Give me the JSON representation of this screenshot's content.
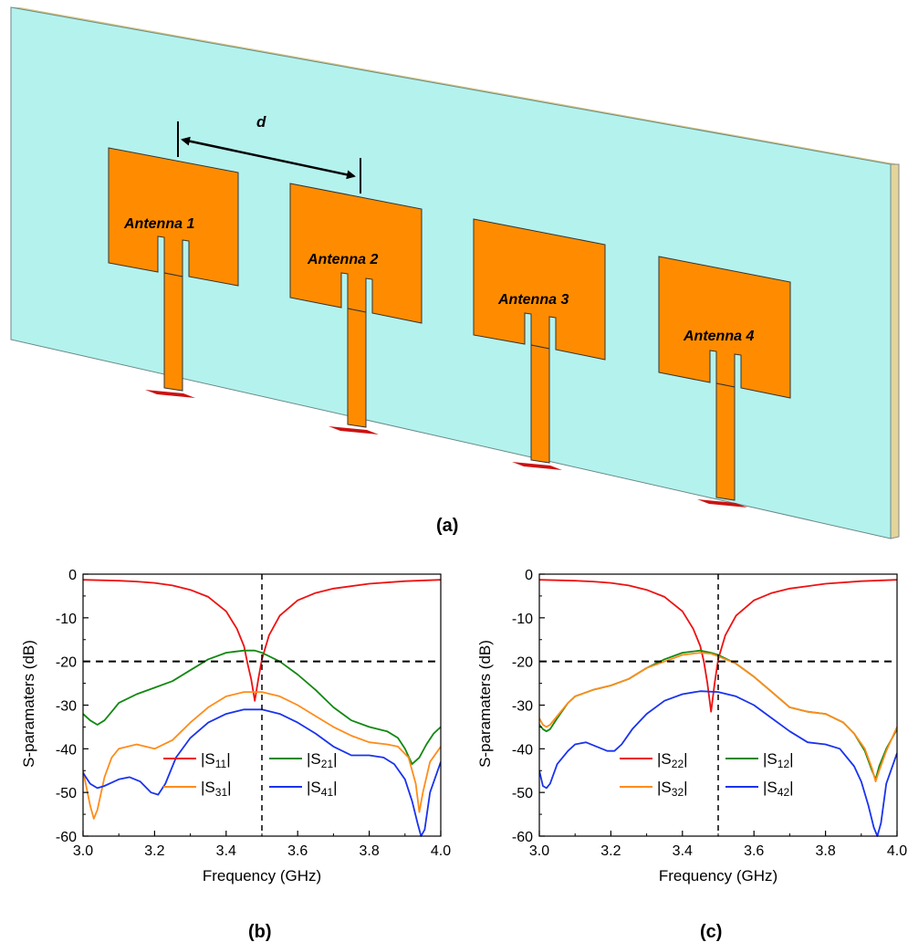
{
  "figure": {
    "panel_a_label": "(a)",
    "panel_b_label": "(b)",
    "panel_c_label": "(c)"
  },
  "illustration": {
    "spacing_label": "d",
    "antennas": [
      "Antenna 1",
      "Antenna 2",
      "Antenna 3",
      "Antenna 4"
    ],
    "colors": {
      "substrate": "#b4f2ee",
      "patch": "#ff8c00",
      "port": "#cc1111",
      "edge": "#e3d59a"
    }
  },
  "chart_data": [
    {
      "type": "line",
      "title": "",
      "xlabel": "Frequency (GHz)",
      "ylabel": "S-paramaters (dB)",
      "xlim": [
        3.0,
        4.0
      ],
      "ylim": [
        -60,
        0
      ],
      "xticks": [
        "3.0",
        "3.2",
        "3.4",
        "3.6",
        "3.8",
        "4.0"
      ],
      "yticks": [
        "0",
        "-10",
        "-20",
        "-30",
        "-40",
        "-50",
        "-60"
      ],
      "reference_lines": {
        "y": -20,
        "x": 3.5
      },
      "legend_placement": "bottom-center",
      "series": [
        {
          "name": "|S11|",
          "label_main": "|S",
          "label_sub": "11",
          "label_end": "|",
          "color": "#ee1111",
          "x": [
            3.0,
            3.05,
            3.1,
            3.15,
            3.2,
            3.25,
            3.3,
            3.35,
            3.4,
            3.43,
            3.45,
            3.46,
            3.47,
            3.48,
            3.49,
            3.5,
            3.52,
            3.55,
            3.6,
            3.65,
            3.7,
            3.8,
            3.9,
            4.0
          ],
          "y": [
            -1.3,
            -1.4,
            -1.5,
            -1.7,
            -2.0,
            -2.6,
            -3.6,
            -5.2,
            -8.5,
            -12.5,
            -16.5,
            -20.5,
            -24.0,
            -29.0,
            -24.0,
            -19.5,
            -14.0,
            -9.5,
            -6.0,
            -4.3,
            -3.3,
            -2.2,
            -1.6,
            -1.3
          ]
        },
        {
          "name": "|S21|",
          "label_main": "|S",
          "label_sub": "21",
          "label_end": "|",
          "color": "#118811",
          "x": [
            3.0,
            3.02,
            3.04,
            3.06,
            3.08,
            3.1,
            3.15,
            3.2,
            3.25,
            3.3,
            3.35,
            3.4,
            3.45,
            3.48,
            3.5,
            3.55,
            3.6,
            3.65,
            3.7,
            3.75,
            3.8,
            3.85,
            3.88,
            3.9,
            3.92,
            3.94,
            3.96,
            3.98,
            4.0
          ],
          "y": [
            -32.0,
            -33.5,
            -34.5,
            -33.5,
            -31.5,
            -29.5,
            -27.5,
            -26.0,
            -24.5,
            -22.0,
            -19.5,
            -18.0,
            -17.5,
            -17.5,
            -18.0,
            -20.0,
            -23.0,
            -26.5,
            -30.5,
            -33.5,
            -35.0,
            -36.0,
            -37.5,
            -40.0,
            -43.5,
            -42.0,
            -39.0,
            -36.5,
            -35.0
          ]
        },
        {
          "name": "|S31|",
          "label_main": "|S",
          "label_sub": "31",
          "label_end": "|",
          "color": "#ff8c1a",
          "x": [
            3.0,
            3.01,
            3.02,
            3.03,
            3.04,
            3.06,
            3.08,
            3.1,
            3.15,
            3.2,
            3.25,
            3.3,
            3.35,
            3.4,
            3.45,
            3.5,
            3.55,
            3.6,
            3.65,
            3.7,
            3.75,
            3.8,
            3.85,
            3.88,
            3.91,
            3.93,
            3.94,
            3.95,
            3.97,
            4.0
          ],
          "y": [
            -45.0,
            -49.0,
            -53.0,
            -56.0,
            -54.0,
            -46.5,
            -42.0,
            -40.0,
            -39.0,
            -40.0,
            -38.0,
            -34.0,
            -30.5,
            -28.0,
            -27.0,
            -27.0,
            -28.0,
            -30.0,
            -32.5,
            -35.0,
            -37.0,
            -38.5,
            -39.0,
            -39.5,
            -42.0,
            -48.0,
            -54.5,
            -50.0,
            -43.0,
            -39.5
          ]
        },
        {
          "name": "|S41|",
          "label_main": "|S",
          "label_sub": "41",
          "label_end": "|",
          "color": "#1a33ee",
          "x": [
            3.0,
            3.02,
            3.04,
            3.06,
            3.1,
            3.13,
            3.16,
            3.19,
            3.21,
            3.23,
            3.26,
            3.3,
            3.35,
            3.4,
            3.45,
            3.5,
            3.55,
            3.6,
            3.65,
            3.7,
            3.75,
            3.8,
            3.84,
            3.87,
            3.9,
            3.92,
            3.935,
            3.945,
            3.955,
            3.97,
            4.0
          ],
          "y": [
            -45.5,
            -48.0,
            -49.0,
            -48.5,
            -47.0,
            -46.5,
            -47.5,
            -50.0,
            -50.5,
            -48.0,
            -42.0,
            -37.5,
            -34.0,
            -32.0,
            -31.0,
            -31.0,
            -32.0,
            -34.0,
            -36.5,
            -39.5,
            -41.5,
            -41.5,
            -42.0,
            -43.5,
            -47.0,
            -52.0,
            -57.0,
            -60.0,
            -58.5,
            -50.0,
            -43.0
          ]
        }
      ]
    },
    {
      "type": "line",
      "title": "",
      "xlabel": "Frequency (GHz)",
      "ylabel": "S-paramaters (dB)",
      "xlim": [
        3.0,
        4.0
      ],
      "ylim": [
        -60,
        0
      ],
      "xticks": [
        "3.0",
        "3.2",
        "3.4",
        "3.6",
        "3.8",
        "4.0"
      ],
      "yticks": [
        "0",
        "-10",
        "-20",
        "-30",
        "-40",
        "-50",
        "-60"
      ],
      "reference_lines": {
        "y": -20,
        "x": 3.5
      },
      "legend_placement": "bottom-center",
      "series": [
        {
          "name": "|S22|",
          "label_main": "|S",
          "label_sub": "22",
          "label_end": "|",
          "color": "#ee1111",
          "x": [
            3.0,
            3.05,
            3.1,
            3.15,
            3.2,
            3.25,
            3.3,
            3.35,
            3.4,
            3.43,
            3.45,
            3.46,
            3.47,
            3.48,
            3.49,
            3.5,
            3.52,
            3.55,
            3.6,
            3.65,
            3.7,
            3.8,
            3.9,
            4.0
          ],
          "y": [
            -1.3,
            -1.4,
            -1.5,
            -1.7,
            -2.0,
            -2.6,
            -3.6,
            -5.2,
            -8.5,
            -12.5,
            -16.5,
            -20.0,
            -25.0,
            -31.5,
            -25.0,
            -19.5,
            -14.0,
            -9.5,
            -6.0,
            -4.3,
            -3.3,
            -2.2,
            -1.6,
            -1.3
          ]
        },
        {
          "name": "|S12|",
          "label_main": "|S",
          "label_sub": "12",
          "label_end": "|",
          "color": "#118811",
          "x": [
            3.0,
            3.01,
            3.02,
            3.03,
            3.05,
            3.08,
            3.1,
            3.15,
            3.2,
            3.25,
            3.3,
            3.35,
            3.4,
            3.45,
            3.48,
            3.5,
            3.55,
            3.6,
            3.65,
            3.7,
            3.75,
            3.8,
            3.85,
            3.88,
            3.91,
            3.93,
            3.94,
            3.95,
            3.97,
            4.0
          ],
          "y": [
            -34.5,
            -35.5,
            -36.0,
            -35.5,
            -33.0,
            -29.5,
            -28.0,
            -26.5,
            -25.5,
            -24.0,
            -21.5,
            -19.5,
            -18.0,
            -17.5,
            -18.0,
            -18.5,
            -20.5,
            -23.5,
            -27.0,
            -30.5,
            -31.5,
            -32.0,
            -34.0,
            -36.5,
            -40.5,
            -45.0,
            -47.0,
            -44.0,
            -40.0,
            -35.5
          ]
        },
        {
          "name": "|S32|",
          "label_main": "|S",
          "label_sub": "32",
          "label_end": "|",
          "color": "#ff8c1a",
          "x": [
            3.0,
            3.01,
            3.02,
            3.03,
            3.05,
            3.08,
            3.1,
            3.15,
            3.2,
            3.25,
            3.3,
            3.35,
            3.4,
            3.45,
            3.48,
            3.5,
            3.55,
            3.6,
            3.65,
            3.7,
            3.75,
            3.8,
            3.85,
            3.88,
            3.91,
            3.93,
            3.94,
            3.95,
            3.97,
            4.0
          ],
          "y": [
            -33.0,
            -34.5,
            -35.0,
            -34.5,
            -32.5,
            -29.5,
            -28.0,
            -26.5,
            -25.5,
            -24.0,
            -21.5,
            -20.0,
            -18.5,
            -18.0,
            -18.2,
            -18.8,
            -20.5,
            -23.5,
            -27.0,
            -30.5,
            -31.5,
            -32.0,
            -34.0,
            -36.5,
            -40.0,
            -44.5,
            -47.5,
            -45.0,
            -40.5,
            -35.0
          ]
        },
        {
          "name": "|S42|",
          "label_main": "|S",
          "label_sub": "42",
          "label_end": "|",
          "color": "#1a33ee",
          "x": [
            3.0,
            3.01,
            3.02,
            3.03,
            3.05,
            3.08,
            3.1,
            3.13,
            3.16,
            3.19,
            3.21,
            3.23,
            3.26,
            3.3,
            3.35,
            3.4,
            3.45,
            3.5,
            3.55,
            3.6,
            3.65,
            3.7,
            3.75,
            3.8,
            3.84,
            3.88,
            3.9,
            3.92,
            3.935,
            3.945,
            3.955,
            3.97,
            4.0
          ],
          "y": [
            -45.0,
            -48.5,
            -49.0,
            -48.0,
            -43.5,
            -40.5,
            -39.0,
            -38.5,
            -39.5,
            -40.5,
            -40.5,
            -39.0,
            -35.5,
            -32.0,
            -29.0,
            -27.5,
            -26.8,
            -27.0,
            -28.0,
            -30.0,
            -33.0,
            -36.0,
            -38.5,
            -39.0,
            -40.0,
            -44.0,
            -47.5,
            -53.0,
            -58.0,
            -60.0,
            -57.0,
            -48.0,
            -41.0
          ]
        }
      ]
    }
  ]
}
